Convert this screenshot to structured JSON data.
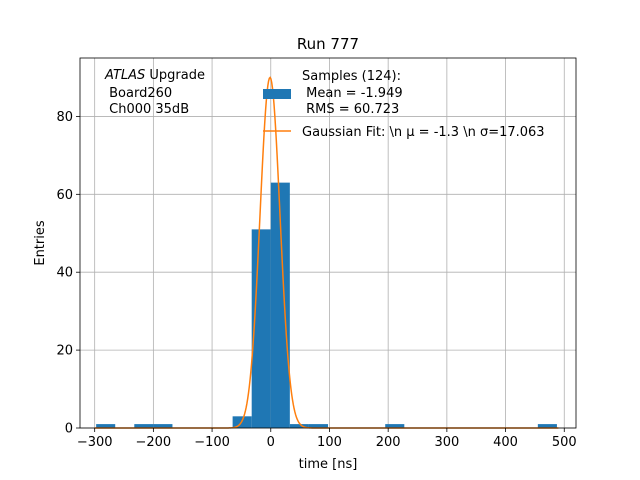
{
  "chart_data": {
    "type": "bar",
    "title": "Run 777",
    "xlabel": "time [ns]",
    "ylabel": "Entries",
    "xlim": [
      -325,
      520
    ],
    "ylim": [
      0,
      95
    ],
    "grid": true,
    "x_ticks": [
      -300,
      -200,
      -100,
      0,
      100,
      200,
      300,
      400,
      500
    ],
    "x_tick_labels": [
      "−300",
      "−200",
      "−100",
      "0",
      "100",
      "200",
      "300",
      "400",
      "500"
    ],
    "y_ticks": [
      0,
      20,
      40,
      60,
      80
    ],
    "y_tick_labels": [
      "0",
      "20",
      "40",
      "60",
      "80"
    ],
    "bin_width": 32.5,
    "bins": [
      {
        "x": -297.5,
        "value": 1
      },
      {
        "x": -232.5,
        "value": 1
      },
      {
        "x": -200.0,
        "value": 1
      },
      {
        "x": -65.0,
        "value": 3
      },
      {
        "x": -32.5,
        "value": 51
      },
      {
        "x": 0.0,
        "value": 63
      },
      {
        "x": 32.5,
        "value": 1
      },
      {
        "x": 65.0,
        "value": 1
      },
      {
        "x": 195.0,
        "value": 1
      },
      {
        "x": 455.0,
        "value": 1
      }
    ],
    "series": [
      {
        "name": "Samples (124):\n Mean = -1.949\n RMS = 60.723",
        "kind": "histogram",
        "color": "#1f77b4"
      },
      {
        "name": "Gaussian Fit: \\n μ = -1.3 \\n σ=17.063",
        "kind": "line",
        "color": "#ff7f0e",
        "amplitude": 90,
        "mu": -1.3,
        "sigma": 17.063
      }
    ],
    "legend": {
      "placement": "top-center",
      "hist_lines": [
        "Samples (124):",
        " Mean = -1.949",
        " RMS = 60.723"
      ],
      "fit_label": "Gaussian Fit: \\n μ = -1.3 \\n σ=17.063"
    },
    "annotation": {
      "italic": "ATLAS",
      "rest": " Upgrade",
      "line2": " Board260",
      "line3": " Ch000 35dB"
    }
  }
}
